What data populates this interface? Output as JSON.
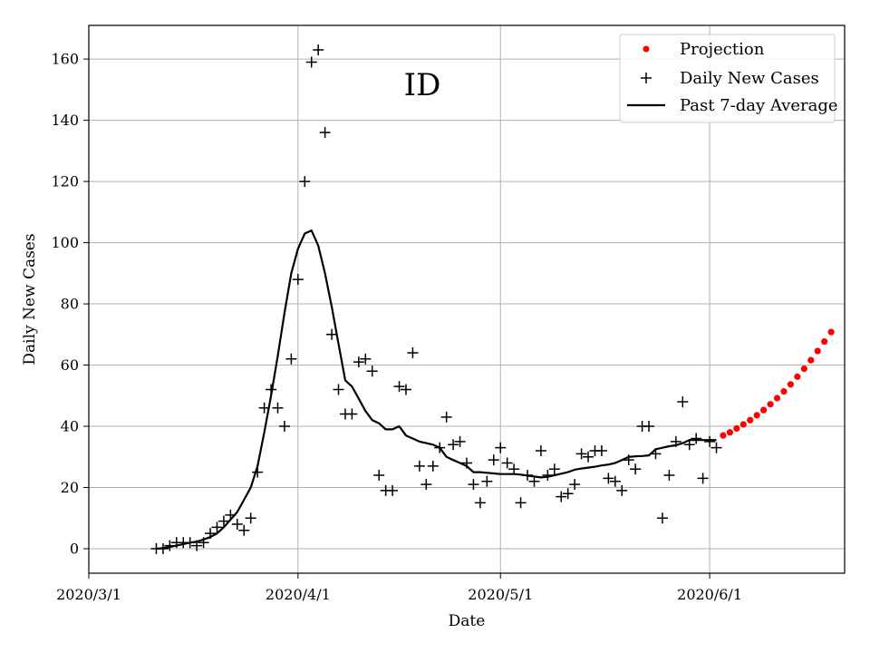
{
  "chart_data": {
    "type": "scatter",
    "title": "",
    "annotation": "ID",
    "xlabel": "Date",
    "ylabel": "Daily New Cases",
    "x_start_date": "2020-03-01",
    "x_unit": "days since 2020/3/1",
    "xlim": [
      0,
      112
    ],
    "ylim": [
      -8,
      171
    ],
    "grid": true,
    "legend_position": "top-right",
    "x_ticks": [
      {
        "value": 0,
        "label": "2020/3/1"
      },
      {
        "value": 31,
        "label": "2020/4/1"
      },
      {
        "value": 61,
        "label": "2020/5/1"
      },
      {
        "value": 92,
        "label": "2020/6/1"
      }
    ],
    "y_ticks": [
      {
        "value": 0,
        "label": "0"
      },
      {
        "value": 20,
        "label": "20"
      },
      {
        "value": 40,
        "label": "40"
      },
      {
        "value": 60,
        "label": "60"
      },
      {
        "value": 80,
        "label": "80"
      },
      {
        "value": 100,
        "label": "100"
      },
      {
        "value": 120,
        "label": "120"
      },
      {
        "value": 140,
        "label": "140"
      },
      {
        "value": 160,
        "label": "160"
      }
    ],
    "series": [
      {
        "name": "Projection",
        "style": "red-dots",
        "color": "#ff0000",
        "x": [
          94,
          95,
          96,
          97,
          98,
          99,
          100,
          101,
          102,
          103,
          104,
          105,
          106,
          107,
          108,
          109,
          110
        ],
        "y": [
          37,
          38,
          39.3,
          40.6,
          42,
          43.6,
          45.3,
          47.2,
          49.2,
          51.4,
          53.7,
          56.2,
          58.8,
          61.6,
          64.6,
          67.7,
          70.8
        ]
      },
      {
        "name": "Daily New Cases",
        "style": "black-plus",
        "color": "#000000",
        "x": [
          10,
          11,
          12,
          13,
          14,
          15,
          16,
          17,
          18,
          19,
          20,
          21,
          22,
          23,
          24,
          25,
          26,
          27,
          28,
          29,
          30,
          31,
          32,
          33,
          34,
          35,
          36,
          37,
          38,
          39,
          40,
          41,
          42,
          43,
          44,
          45,
          46,
          47,
          48,
          49,
          50,
          51,
          52,
          53,
          54,
          55,
          56,
          57,
          58,
          59,
          60,
          61,
          62,
          63,
          64,
          65,
          66,
          67,
          68,
          69,
          70,
          71,
          72,
          73,
          74,
          75,
          76,
          77,
          78,
          79,
          80,
          81,
          82,
          83,
          84,
          85,
          86,
          87,
          88,
          89,
          90,
          91,
          92,
          93
        ],
        "y": [
          0,
          0,
          1,
          2,
          2,
          2,
          1,
          2,
          5,
          7,
          9,
          11,
          8,
          6,
          10,
          25,
          46,
          52,
          46,
          40,
          62,
          88,
          120,
          159,
          163,
          136,
          70,
          52,
          44,
          44,
          61,
          62,
          58,
          24,
          19,
          19,
          53,
          52,
          64,
          27,
          21,
          27,
          33,
          43,
          34,
          35,
          28,
          21,
          15,
          22,
          29,
          33,
          28,
          26,
          15,
          24,
          22,
          32,
          24,
          26,
          17,
          18,
          21,
          31,
          30,
          32,
          32,
          23,
          22,
          19,
          29,
          26,
          40,
          40,
          31,
          10,
          24,
          35,
          48,
          34,
          36,
          23,
          35,
          33
        ]
      },
      {
        "name": "Past 7-day Average",
        "style": "black-line",
        "color": "#000000",
        "x": [
          10,
          11,
          12,
          13,
          14,
          15,
          16,
          17,
          18,
          19,
          20,
          21,
          22,
          23,
          24,
          25,
          26,
          27,
          28,
          29,
          30,
          31,
          32,
          33,
          34,
          35,
          36,
          37,
          38,
          39,
          40,
          41,
          42,
          43,
          44,
          45,
          46,
          47,
          48,
          49,
          50,
          51,
          52,
          53,
          54,
          55,
          56,
          57,
          58,
          59,
          60,
          61,
          62,
          63,
          64,
          65,
          66,
          67,
          68,
          69,
          70,
          71,
          72,
          73,
          74,
          75,
          76,
          77,
          78,
          79,
          80,
          81,
          82,
          83,
          84,
          85,
          86,
          87,
          88,
          89,
          90,
          91,
          92,
          93
        ],
        "y": [
          0,
          0.2,
          0.6,
          1,
          1.5,
          2,
          2.3,
          3,
          3.8,
          5,
          7,
          9.5,
          12,
          16,
          20,
          27,
          38,
          50,
          63,
          77,
          90,
          98,
          103,
          104,
          99,
          90,
          79,
          67,
          55,
          53,
          49,
          45,
          42,
          41,
          39,
          39,
          40,
          37,
          36,
          35,
          34.5,
          34,
          33,
          30,
          29,
          28,
          27,
          25,
          25,
          24.8,
          24.6,
          24.4,
          24.4,
          24.4,
          24.2,
          23.9,
          23.6,
          23.3,
          23.5,
          24,
          24.5,
          25,
          25.8,
          26.2,
          26.5,
          26.8,
          27.2,
          27.5,
          28,
          29,
          30,
          30.2,
          30.3,
          30.5,
          32.5,
          33,
          33.5,
          33.8,
          34.5,
          35.5,
          35.5,
          35.5,
          35.5,
          35.5
        ]
      }
    ]
  },
  "legend": {
    "items": [
      "Projection",
      "Daily New Cases",
      "Past 7-day Average"
    ]
  }
}
